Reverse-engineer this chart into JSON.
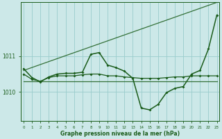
{
  "xlabel": "Graphe pression niveau de la mer (hPa)",
  "background_color": "#cce8e8",
  "grid_color": "#99cccc",
  "line_color": "#1a5c1a",
  "ylim_min": 1009.2,
  "ylim_max": 1012.5,
  "ytick_positions": [
    1010,
    1011
  ],
  "xtick_labels": [
    "0",
    "1",
    "2",
    "3",
    "4",
    "5",
    "6",
    "7",
    "8",
    "9",
    "10",
    "11",
    "12",
    "13",
    "14",
    "15",
    "16",
    "17",
    "18",
    "19",
    "20",
    "21",
    "22",
    "23"
  ],
  "series_upper_bound": {
    "x": [
      0,
      23
    ],
    "y": [
      1010.6,
      1012.5
    ],
    "markers": false
  },
  "series_lower_bound": {
    "x": [
      0,
      23
    ],
    "y": [
      1010.3,
      1010.3
    ],
    "markers": false
  },
  "series_mid_flat": {
    "x": [
      0,
      1,
      2,
      3,
      4,
      5,
      6,
      7,
      8,
      9,
      10,
      11,
      12,
      13,
      14,
      15,
      16,
      17,
      18,
      19,
      20,
      21,
      22,
      23
    ],
    "y": [
      1010.5,
      1010.35,
      1010.3,
      1010.4,
      1010.45,
      1010.45,
      1010.45,
      1010.48,
      1010.5,
      1010.5,
      1010.45,
      1010.45,
      1010.42,
      1010.4,
      1010.38,
      1010.38,
      1010.38,
      1010.4,
      1010.42,
      1010.42,
      1010.45,
      1010.45,
      1010.45,
      1010.45
    ],
    "markers": true
  },
  "series_main": {
    "x": [
      0,
      1,
      2,
      3,
      4,
      5,
      6,
      7,
      8,
      9,
      10,
      11,
      12,
      13,
      14,
      15,
      16,
      17,
      18,
      19,
      20,
      21,
      22,
      23
    ],
    "y": [
      1010.65,
      1010.4,
      1010.28,
      1010.42,
      1010.5,
      1010.52,
      1010.52,
      1010.55,
      1011.05,
      1011.1,
      1010.75,
      1010.68,
      1010.58,
      1010.38,
      1009.55,
      1009.5,
      1009.65,
      1009.98,
      1010.1,
      1010.15,
      1010.5,
      1010.6,
      1011.2,
      1012.15
    ],
    "markers": true
  }
}
